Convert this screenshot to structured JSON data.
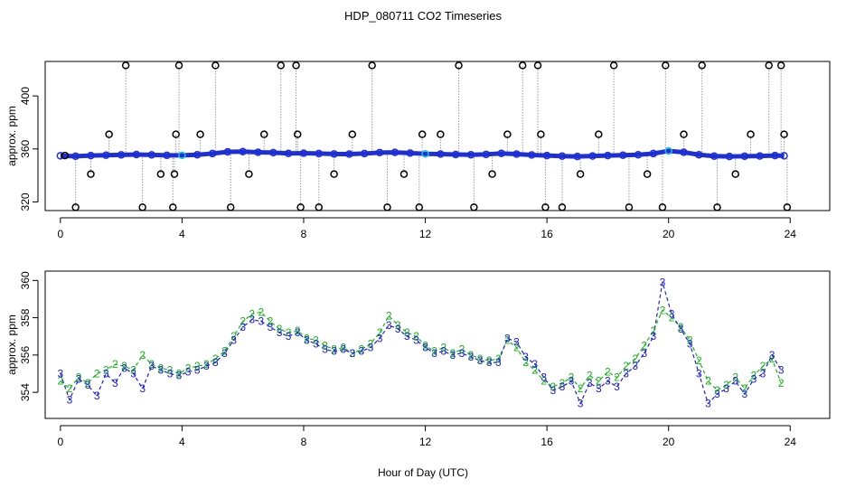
{
  "title": "HDP_080711  CO2 Timeseries",
  "xlabel": "Hour of Day (UTC)",
  "colors": {
    "raw_markers": "#000000",
    "raw_line": "#9a9a9a",
    "mean_markers": "#1f2fd6",
    "mean_highlight": "#19c7d8",
    "series2": "#16b516",
    "series3": "#1f1fd6"
  },
  "chart_data": [
    {
      "type": "scatter",
      "ylabel": "approx. ppm",
      "xlim": [
        -0.5,
        25.3
      ],
      "ylim": [
        313.5,
        426
      ],
      "xticks": [
        "0",
        "4",
        "8",
        "12",
        "16",
        "20",
        "24"
      ],
      "yticks": [
        "320",
        "360",
        "400"
      ],
      "grid": false,
      "series": [
        {
          "role": "raw",
          "marker": "circle",
          "x": [
            0.15,
            0.5,
            1.0,
            1.6,
            2.15,
            2.7,
            3.3,
            3.7,
            3.75,
            3.8,
            3.9,
            4.6,
            5.1,
            5.6,
            6.2,
            6.7,
            7.25,
            7.75,
            7.8,
            7.9,
            8.5,
            9.0,
            9.6,
            10.25,
            10.75,
            11.3,
            11.8,
            11.9,
            12.5,
            13.1,
            13.6,
            14.2,
            14.7,
            15.2,
            15.7,
            15.8,
            15.95,
            16.5,
            17.1,
            17.7,
            18.2,
            18.7,
            19.3,
            19.8,
            19.9,
            20.5,
            21.1,
            21.6,
            22.2,
            22.7,
            23.3,
            23.7,
            23.8,
            23.9
          ],
          "y": [
            355,
            316,
            341,
            371,
            423,
            316,
            341,
            316,
            341,
            371,
            423,
            371,
            423,
            316,
            341,
            371,
            423,
            423,
            371,
            316,
            316,
            341,
            371,
            423,
            316,
            341,
            316,
            371,
            371,
            423,
            316,
            341,
            371,
            423,
            423,
            371,
            316,
            316,
            341,
            371,
            423,
            316,
            341,
            316,
            423,
            371,
            423,
            316,
            341,
            371,
            423,
            423,
            371,
            316
          ]
        },
        {
          "role": "minute-means",
          "marker": "circle",
          "x": [
            0,
            0.5,
            1,
            1.5,
            2,
            2.5,
            3,
            3.5,
            4,
            4.5,
            5,
            5.5,
            6,
            6.5,
            7,
            7.5,
            8,
            8.5,
            9,
            9.5,
            10,
            10.5,
            11,
            11.5,
            12,
            12.5,
            13,
            13.5,
            14,
            14.5,
            15,
            15.5,
            16,
            16.5,
            17,
            17.5,
            18,
            18.5,
            19,
            19.5,
            20,
            20.5,
            21,
            21.5,
            22,
            22.5,
            23,
            23.5,
            23.8
          ],
          "y": [
            354.8,
            354.5,
            355,
            355.3,
            355.5,
            355.8,
            355.5,
            355.2,
            355.2,
            355.6,
            356.5,
            357.8,
            358,
            357.5,
            357.2,
            356.6,
            356.8,
            356.5,
            356.2,
            356.1,
            356.5,
            357.2,
            357.4,
            356.9,
            356.3,
            356.1,
            355.8,
            355.6,
            355.9,
            356.6,
            356.1,
            355.4,
            355,
            354.6,
            354.3,
            354.7,
            355,
            355.3,
            355.6,
            356.5,
            358.5,
            357.5,
            355.6,
            354.6,
            354.3,
            354.5,
            354.7,
            355,
            354.8
          ]
        }
      ]
    },
    {
      "type": "line",
      "ylabel": "approx. ppm",
      "xlim": [
        -0.5,
        25.3
      ],
      "ylim": [
        352.6,
        360.5
      ],
      "xticks": [
        "0",
        "4",
        "8",
        "12",
        "16",
        "20",
        "24"
      ],
      "yticks": [
        "354",
        "356",
        "358",
        "360"
      ],
      "grid": false,
      "series": [
        {
          "name": "2",
          "marker": "2",
          "x": [
            0,
            0.3,
            0.6,
            0.9,
            1.2,
            1.5,
            1.8,
            2.1,
            2.4,
            2.7,
            3.0,
            3.3,
            3.6,
            3.9,
            4.2,
            4.5,
            4.8,
            5.1,
            5.4,
            5.7,
            6.0,
            6.3,
            6.6,
            6.9,
            7.2,
            7.5,
            7.8,
            8.1,
            8.4,
            8.7,
            9.0,
            9.3,
            9.6,
            9.9,
            10.2,
            10.5,
            10.8,
            11.1,
            11.4,
            11.7,
            12.0,
            12.3,
            12.6,
            12.9,
            13.2,
            13.5,
            13.8,
            14.1,
            14.4,
            14.7,
            15.0,
            15.3,
            15.6,
            15.9,
            16.2,
            16.5,
            16.8,
            17.1,
            17.4,
            17.7,
            18.0,
            18.3,
            18.6,
            18.9,
            19.2,
            19.5,
            19.8,
            20.1,
            20.4,
            20.7,
            21.0,
            21.3,
            21.6,
            21.9,
            22.2,
            22.5,
            22.8,
            23.1,
            23.4,
            23.7
          ],
          "y": [
            354.6,
            354.2,
            354.8,
            354.5,
            355,
            355.2,
            355.5,
            355.4,
            355.2,
            356,
            355.5,
            355.3,
            355.2,
            355,
            355.3,
            355.4,
            355.5,
            355.8,
            356.2,
            357,
            357.8,
            358.2,
            358.3,
            357.8,
            357.4,
            357.2,
            357.3,
            356.9,
            356.8,
            356.5,
            356.3,
            356.4,
            356.1,
            356.3,
            356.6,
            357.2,
            358.1,
            357.6,
            357.2,
            357.0,
            356.5,
            356.2,
            356.4,
            356.1,
            356.3,
            356.0,
            355.8,
            355.7,
            355.8,
            356.8,
            356.4,
            355.6,
            355.2,
            354.6,
            354.3,
            354.5,
            354.8,
            354.2,
            354.9,
            354.6,
            355.1,
            354.8,
            355.4,
            355.8,
            356.5,
            357.3,
            358.4,
            358.0,
            357.5,
            356.8,
            355.7,
            354.6,
            354.1,
            354.4,
            354.8,
            354.2,
            354.9,
            355.4,
            355.8,
            354.5
          ]
        },
        {
          "name": "3",
          "marker": "3",
          "x": [
            0,
            0.3,
            0.6,
            0.9,
            1.2,
            1.5,
            1.8,
            2.1,
            2.4,
            2.7,
            3.0,
            3.3,
            3.6,
            3.9,
            4.2,
            4.5,
            4.8,
            5.1,
            5.4,
            5.7,
            6.0,
            6.3,
            6.6,
            6.9,
            7.2,
            7.5,
            7.8,
            8.1,
            8.4,
            8.7,
            9.0,
            9.3,
            9.6,
            9.9,
            10.2,
            10.5,
            10.8,
            11.1,
            11.4,
            11.7,
            12.0,
            12.3,
            12.6,
            12.9,
            13.2,
            13.5,
            13.8,
            14.1,
            14.4,
            14.7,
            15.0,
            15.3,
            15.6,
            15.9,
            16.2,
            16.5,
            16.8,
            17.1,
            17.4,
            17.7,
            18.0,
            18.3,
            18.6,
            18.9,
            19.2,
            19.5,
            19.8,
            20.1,
            20.4,
            20.7,
            21.0,
            21.3,
            21.6,
            21.9,
            22.2,
            22.5,
            22.8,
            23.1,
            23.4,
            23.7
          ],
          "y": [
            355,
            353.6,
            354.7,
            354.4,
            353.8,
            355,
            354.5,
            355.3,
            355,
            354.2,
            355.4,
            355.2,
            355,
            354.9,
            355.1,
            355.2,
            355.4,
            355.6,
            356.1,
            356.8,
            357.5,
            357.9,
            357.8,
            357.5,
            357.2,
            357.0,
            357.2,
            356.8,
            356.6,
            356.3,
            356.2,
            356.3,
            356.1,
            356.2,
            356.4,
            356.9,
            357.6,
            357.4,
            357.0,
            356.8,
            356.4,
            356.1,
            356.2,
            356.0,
            356.1,
            355.9,
            355.7,
            355.6,
            355.6,
            356.9,
            356.7,
            355.9,
            355.5,
            354.8,
            354.1,
            354.3,
            354.6,
            353.4,
            354.5,
            354.2,
            354.6,
            354.3,
            355.0,
            355.4,
            356.1,
            357.0,
            359.9,
            358.2,
            357.4,
            356.6,
            355.0,
            353.4,
            353.9,
            354.2,
            354.6,
            353.9,
            354.7,
            355.0,
            356.0,
            355.2
          ]
        }
      ]
    }
  ]
}
